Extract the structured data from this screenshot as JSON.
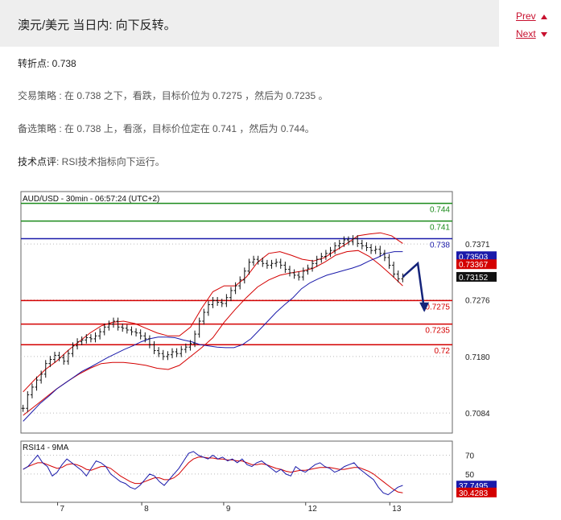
{
  "header": {
    "title": "澳元/美元 当日内: 向下反转。",
    "prev_label": "Prev",
    "next_label": "Next"
  },
  "analysis": {
    "pivot_label": "转折点",
    "pivot_value": ": 0.738",
    "strategy_label": "交易策略 :",
    "strategy_text": " 在 0.738 之下，看跌，目标价位为 0.7275 ，然后为 0.7235 。",
    "alt_label": "备选策略 :",
    "alt_text": " 在 0.738 上，看涨，目标价位定在 0.741 ，然后为 0.744。",
    "tech_label": "技术点评",
    "tech_text": ": RSI技术指标向下运行。"
  },
  "chart_data": {
    "type": "line",
    "title": "AUD/USD - 30min - 06:57:24 (UTC+2)",
    "x_ticks": [
      "7",
      "8",
      "9",
      "12",
      "13"
    ],
    "price_axis": {
      "ylim": [
        0.705,
        0.746
      ],
      "ticks": [
        "0.7371",
        "0.7276",
        "0.7180",
        "0.7084"
      ]
    },
    "levels": [
      {
        "label": "0.744",
        "value": 0.744,
        "color": "#1a8a1a"
      },
      {
        "label": "0.741",
        "value": 0.741,
        "color": "#1a8a1a"
      },
      {
        "label": "0.738",
        "value": 0.738,
        "color": "#1a1aaa"
      },
      {
        "label": "0.7275",
        "value": 0.7275,
        "color": "#d40000"
      },
      {
        "label": "0.7235",
        "value": 0.7235,
        "color": "#d40000"
      },
      {
        "label": "0.72",
        "value": 0.72,
        "color": "#d40000"
      }
    ],
    "price_tags": [
      {
        "label": "0.73503",
        "value": 0.73503,
        "color": "#1a1aaa"
      },
      {
        "label": "0.73367",
        "value": 0.73367,
        "color": "#d40000"
      },
      {
        "label": "0.73152",
        "value": 0.73152,
        "color": "#111111"
      }
    ],
    "price_path": [
      0.7092,
      0.7115,
      0.7128,
      0.714,
      0.715,
      0.7168,
      0.7175,
      0.7182,
      0.7178,
      0.7172,
      0.7185,
      0.7198,
      0.7205,
      0.7208,
      0.7212,
      0.721,
      0.7215,
      0.7222,
      0.723,
      0.7235,
      0.724,
      0.723,
      0.7228,
      0.7225,
      0.7222,
      0.722,
      0.7215,
      0.721,
      0.72,
      0.719,
      0.7185,
      0.718,
      0.7183,
      0.7188,
      0.7185,
      0.7192,
      0.7196,
      0.7202,
      0.7218,
      0.724,
      0.7255,
      0.7268,
      0.7275,
      0.7272,
      0.727,
      0.728,
      0.7292,
      0.73,
      0.731,
      0.7325,
      0.734,
      0.7345,
      0.7342,
      0.7338,
      0.7335,
      0.7338,
      0.734,
      0.7335,
      0.7328,
      0.7322,
      0.7318,
      0.7315,
      0.7325,
      0.733,
      0.7338,
      0.7345,
      0.735,
      0.7355,
      0.736,
      0.7368,
      0.7372,
      0.7378,
      0.7375,
      0.738,
      0.7372,
      0.7368,
      0.7365,
      0.736,
      0.7362,
      0.7355,
      0.7348,
      0.7335,
      0.732,
      0.7312,
      0.7315
    ],
    "ma_blue": [
      0.707,
      0.7085,
      0.71,
      0.7112,
      0.7125,
      0.7135,
      0.7145,
      0.7155,
      0.7162,
      0.717,
      0.7178,
      0.7185,
      0.7192,
      0.7198,
      0.7205,
      0.721,
      0.7213,
      0.7213,
      0.7212,
      0.7208,
      0.7205,
      0.72,
      0.7198,
      0.7196,
      0.7195,
      0.7195,
      0.72,
      0.721,
      0.7225,
      0.724,
      0.7255,
      0.7268,
      0.728,
      0.7295,
      0.7305,
      0.7312,
      0.7318,
      0.7322,
      0.7326,
      0.733,
      0.7335,
      0.7342,
      0.7348,
      0.7355,
      0.7358,
      0.7358
    ],
    "bb_upper": [
      0.712,
      0.714,
      0.7158,
      0.7172,
      0.719,
      0.7205,
      0.722,
      0.7232,
      0.7238,
      0.724,
      0.7236,
      0.7228,
      0.722,
      0.7215,
      0.7215,
      0.723,
      0.7262,
      0.729,
      0.73,
      0.73,
      0.7315,
      0.734,
      0.7355,
      0.7358,
      0.7352,
      0.7345,
      0.7342,
      0.7348,
      0.736,
      0.7372,
      0.7385,
      0.7388,
      0.739,
      0.7385,
      0.7372
    ],
    "bb_lower": [
      0.708,
      0.7095,
      0.711,
      0.7125,
      0.7138,
      0.715,
      0.716,
      0.7168,
      0.717,
      0.717,
      0.7168,
      0.7165,
      0.716,
      0.7158,
      0.7165,
      0.718,
      0.7195,
      0.7212,
      0.7238,
      0.726,
      0.728,
      0.7298,
      0.731,
      0.7318,
      0.7322,
      0.7325,
      0.733,
      0.734,
      0.7352,
      0.7358,
      0.736,
      0.735,
      0.7335,
      0.7318,
      0.73
    ],
    "forecast_path": [
      0.73152,
      0.7338,
      0.7258
    ],
    "rsi": {
      "label": "RSI14 - 9MA",
      "ylim": [
        20,
        85
      ],
      "ticks": [
        "70",
        "50"
      ],
      "tags": [
        {
          "label": "37.7495",
          "value": 37.7495,
          "color": "#1a1aaa"
        },
        {
          "label": "30.4283",
          "value": 30.4283,
          "color": "#d40000"
        }
      ],
      "values": [
        55,
        58,
        64,
        70,
        62,
        58,
        48,
        52,
        60,
        66,
        62,
        58,
        54,
        48,
        56,
        64,
        62,
        58,
        50,
        46,
        42,
        40,
        36,
        34,
        38,
        44,
        50,
        48,
        42,
        38,
        44,
        50,
        56,
        64,
        72,
        74,
        70,
        68,
        66,
        70,
        66,
        68,
        64,
        66,
        62,
        66,
        60,
        58,
        62,
        64,
        60,
        56,
        52,
        55,
        50,
        48,
        58,
        54,
        52,
        56,
        60,
        62,
        58,
        56,
        52,
        54,
        58,
        60,
        62,
        56,
        52,
        48,
        44,
        36,
        30,
        28,
        32,
        36,
        38
      ],
      "ma": [
        55,
        58,
        60,
        62,
        62,
        60,
        58,
        56,
        57,
        60,
        61,
        60,
        58,
        55,
        54,
        56,
        58,
        58,
        56,
        52,
        48,
        45,
        42,
        40,
        40,
        42,
        44,
        46,
        46,
        44,
        44,
        46,
        50,
        56,
        62,
        66,
        68,
        68,
        67,
        67,
        66,
        66,
        65,
        65,
        64,
        64,
        62,
        60,
        60,
        61,
        60,
        58,
        56,
        55,
        53,
        52,
        53,
        54,
        54,
        55,
        56,
        57,
        57,
        57,
        56,
        55,
        55,
        56,
        57,
        57,
        55,
        53,
        50,
        46,
        42,
        38,
        34,
        31,
        30
      ]
    }
  }
}
